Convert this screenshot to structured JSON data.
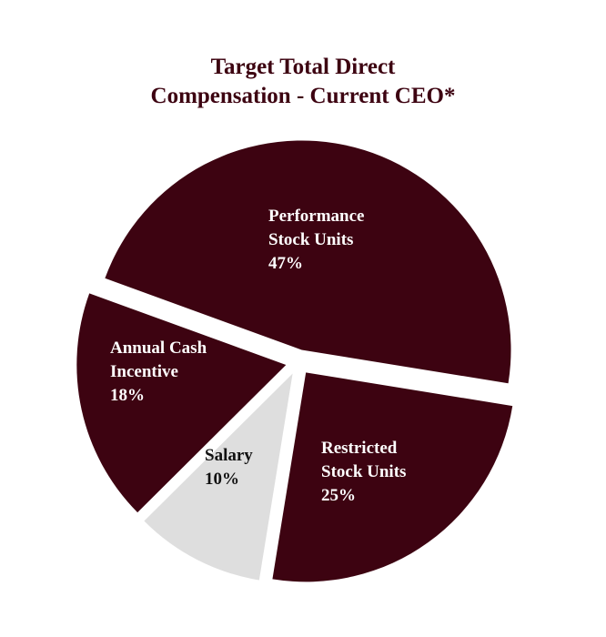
{
  "chart_data": {
    "type": "pie",
    "title_lines": [
      "Target Total Direct",
      "Compensation - Current CEO*"
    ],
    "slices": [
      {
        "label_lines": [
          "Performance",
          "Stock Units",
          "47%"
        ],
        "value": 47,
        "color": "#3d0311",
        "text_color": "#ffffff"
      },
      {
        "label_lines": [
          "Restricted",
          "Stock Units",
          "25%"
        ],
        "value": 25,
        "color": "#3d0311",
        "text_color": "#ffffff"
      },
      {
        "label_lines": [
          "Salary",
          "10%"
        ],
        "value": 10,
        "color": "#dedede",
        "text_color": "#111111"
      },
      {
        "label_lines": [
          "Annual Cash",
          "Incentive",
          "18%"
        ],
        "value": 18,
        "color": "#3d0311",
        "text_color": "#ffffff"
      }
    ],
    "title_color": "#3d0311"
  }
}
